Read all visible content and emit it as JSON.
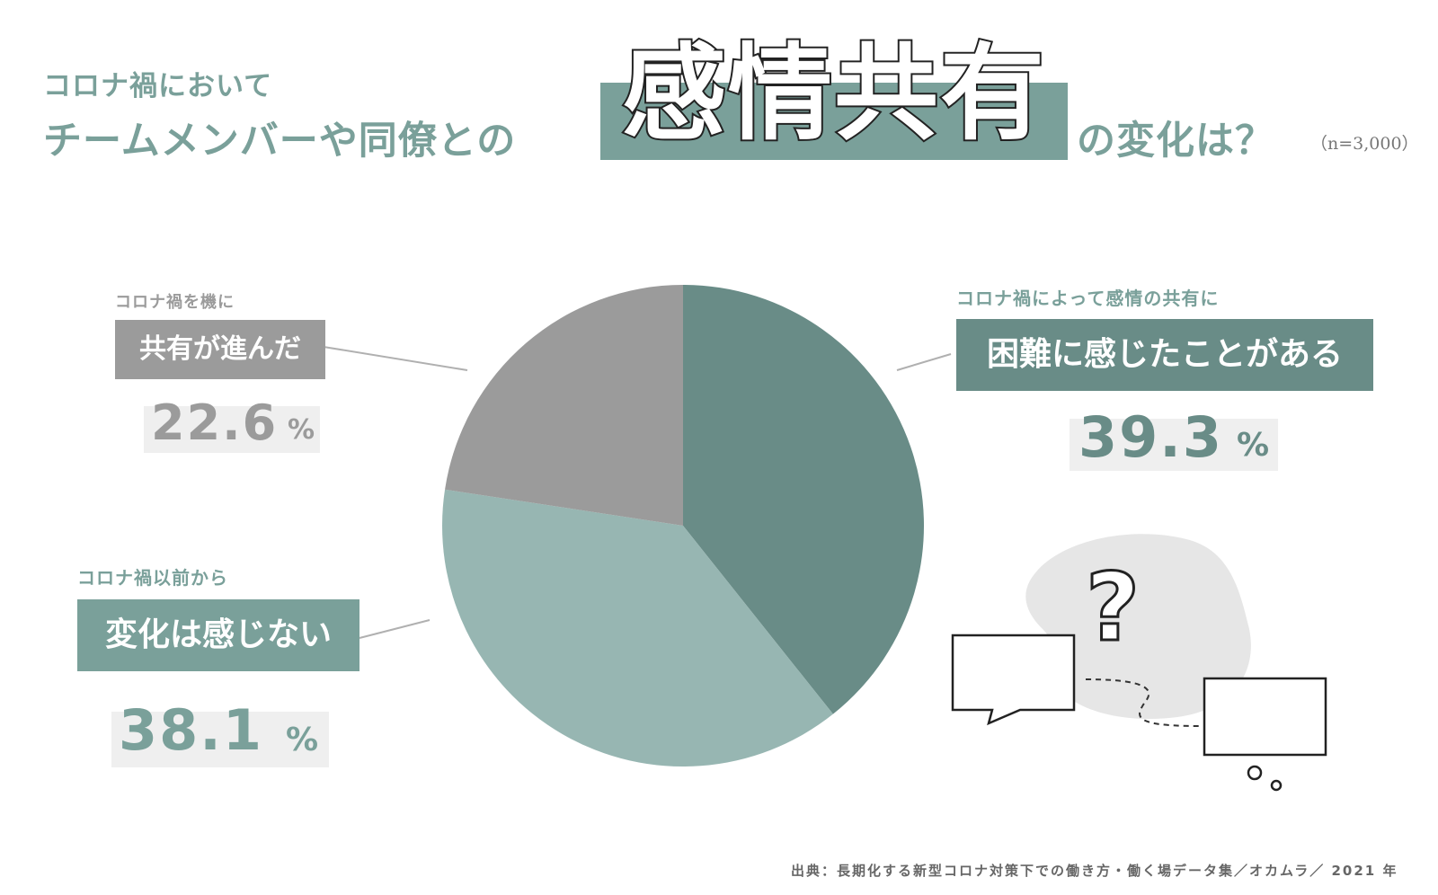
{
  "header": {
    "line1": "コロナ禍において",
    "line2": "チームメンバーや同僚との",
    "highlight": "感情共有",
    "tail": "の変化は？",
    "sample": "（n=3,000）"
  },
  "labels": {
    "difficulty": {
      "caption": "コロナ禍によって感情の共有に",
      "box": "困難に感じたことがある",
      "value": "39.3",
      "unit": "%"
    },
    "no_change": {
      "caption": "コロナ禍以前から",
      "box": "変化は感じない",
      "value": "38.1",
      "unit": "%"
    },
    "advanced": {
      "caption": "コロナ禍を機に",
      "box": "共有が進んだ",
      "value": "22.6",
      "unit": "%"
    }
  },
  "source": "出典：長期化する新型コロナ対策下での働き方・働く場データ集／オカムラ／ 2021 年",
  "colors": {
    "difficulty": "#698c87",
    "no_change": "#97b6b2",
    "advanced": "#9b9b9b",
    "accent": "#7aa09a"
  },
  "chart_data": {
    "type": "pie",
    "title": "コロナ禍においてチームメンバーや同僚との感情共有の変化は？",
    "n": "n=3,000",
    "slices": [
      {
        "label": "困難に感じたことがある",
        "value": 39.3
      },
      {
        "label": "変化は感じない",
        "value": 38.1
      },
      {
        "label": "共有が進んだ",
        "value": 22.6
      }
    ]
  }
}
